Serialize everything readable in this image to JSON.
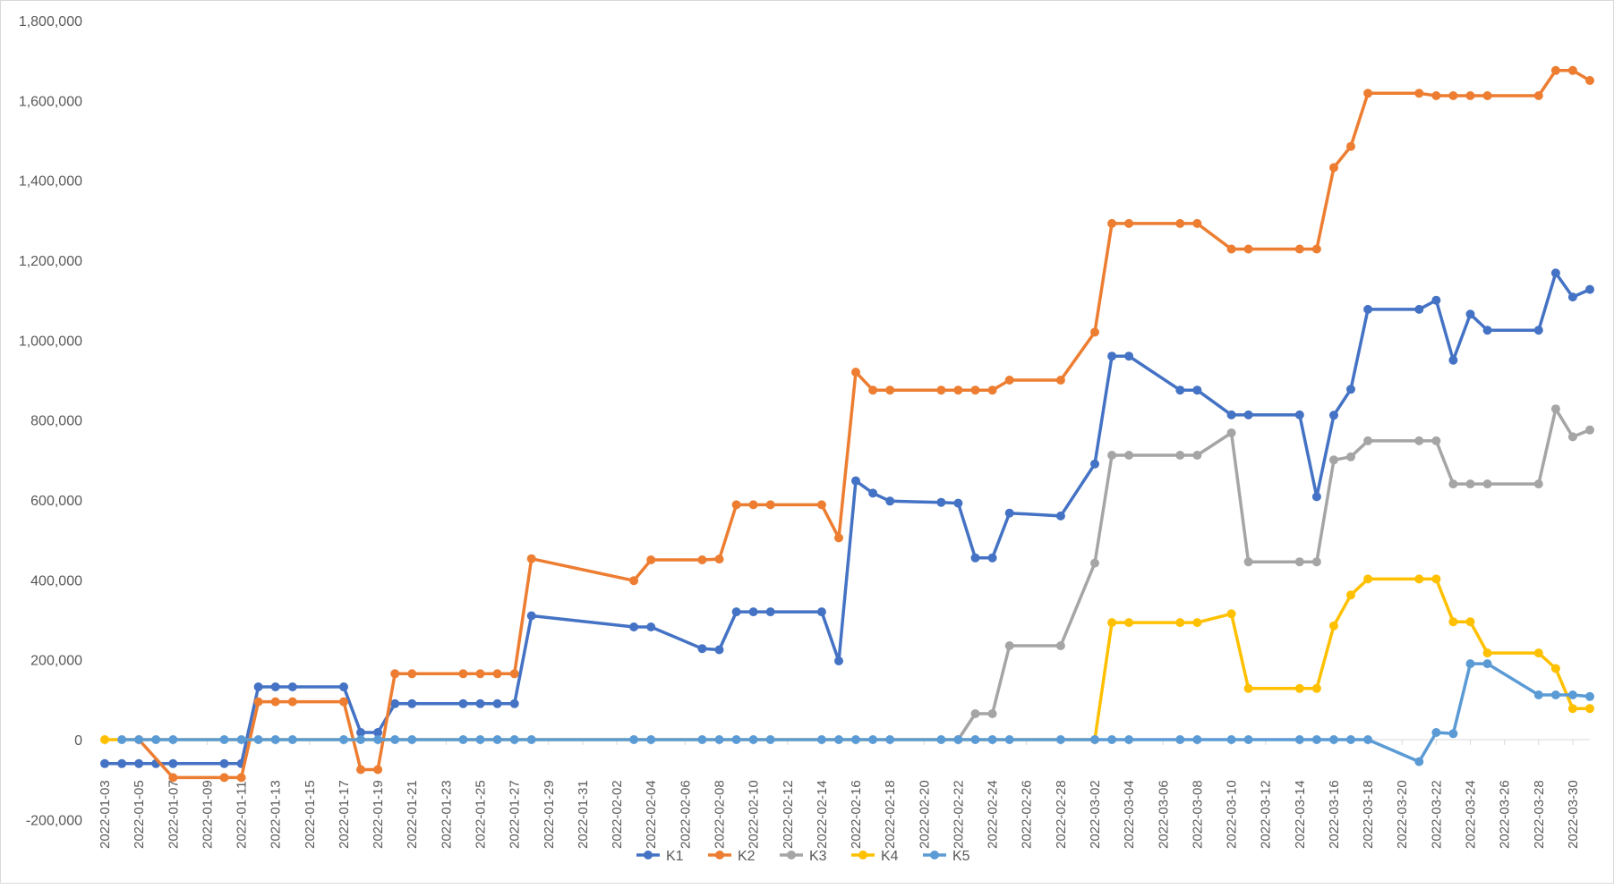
{
  "chart_data": {
    "type": "line",
    "title": "",
    "xlabel": "",
    "ylabel": "",
    "ylim": [
      -200000,
      1800000
    ],
    "y_ticks": [
      -200000,
      0,
      200000,
      400000,
      600000,
      800000,
      1000000,
      1200000,
      1400000,
      1600000,
      1800000
    ],
    "y_tick_labels": [
      "-200,000",
      "0",
      "200,000",
      "400,000",
      "600,000",
      "800,000",
      "1,000,000",
      "1,200,000",
      "1,400,000",
      "1,600,000",
      "1,800,000"
    ],
    "x_range": [
      "2022-01-03",
      "2022-03-31"
    ],
    "x_tick_labels": [
      "2022-01-03",
      "2022-01-05",
      "2022-01-07",
      "2022-01-09",
      "2022-01-11",
      "2022-01-13",
      "2022-01-15",
      "2022-01-17",
      "2022-01-19",
      "2022-01-21",
      "2022-01-23",
      "2022-01-25",
      "2022-01-27",
      "2022-01-29",
      "2022-01-31",
      "2022-02-02",
      "2022-02-04",
      "2022-02-06",
      "2022-02-08",
      "2022-02-10",
      "2022-02-12",
      "2022-02-14",
      "2022-02-16",
      "2022-02-18",
      "2022-02-20",
      "2022-02-22",
      "2022-02-24",
      "2022-02-26",
      "2022-02-28",
      "2022-03-02",
      "2022-03-04",
      "2022-03-06",
      "2022-03-08",
      "2022-03-10",
      "2022-03-12",
      "2022-03-14",
      "2022-03-16",
      "2022-03-18",
      "2022-03-20",
      "2022-03-22",
      "2022-03-24",
      "2022-03-26",
      "2022-03-28",
      "2022-03-30"
    ],
    "grid": false,
    "legend": "bottom",
    "series": [
      {
        "name": "K1",
        "color": "#4472C4",
        "points": [
          [
            "2022-01-03",
            -60000
          ],
          [
            "2022-01-04",
            -60000
          ],
          [
            "2022-01-05",
            -60000
          ],
          [
            "2022-01-06",
            -60000
          ],
          [
            "2022-01-07",
            -60000
          ],
          [
            "2022-01-10",
            -60000
          ],
          [
            "2022-01-11",
            -60000
          ],
          [
            "2022-01-12",
            132000
          ],
          [
            "2022-01-13",
            132000
          ],
          [
            "2022-01-14",
            132000
          ],
          [
            "2022-01-17",
            132000
          ],
          [
            "2022-01-18",
            18000
          ],
          [
            "2022-01-19",
            18000
          ],
          [
            "2022-01-20",
            90000
          ],
          [
            "2022-01-21",
            90000
          ],
          [
            "2022-01-24",
            90000
          ],
          [
            "2022-01-25",
            90000
          ],
          [
            "2022-01-26",
            90000
          ],
          [
            "2022-01-27",
            90000
          ],
          [
            "2022-01-28",
            310000
          ],
          [
            "2022-02-03",
            282000
          ],
          [
            "2022-02-04",
            282000
          ],
          [
            "2022-02-07",
            228000
          ],
          [
            "2022-02-08",
            225000
          ],
          [
            "2022-02-09",
            320000
          ],
          [
            "2022-02-10",
            320000
          ],
          [
            "2022-02-11",
            320000
          ],
          [
            "2022-02-14",
            320000
          ],
          [
            "2022-02-15",
            197000
          ],
          [
            "2022-02-16",
            648000
          ],
          [
            "2022-02-17",
            617000
          ],
          [
            "2022-02-18",
            597000
          ],
          [
            "2022-02-21",
            594000
          ],
          [
            "2022-02-22",
            592000
          ],
          [
            "2022-02-23",
            455000
          ],
          [
            "2022-02-24",
            455000
          ],
          [
            "2022-02-25",
            567000
          ],
          [
            "2022-02-28",
            560000
          ],
          [
            "2022-03-02",
            690000
          ],
          [
            "2022-03-03",
            960000
          ],
          [
            "2022-03-04",
            960000
          ],
          [
            "2022-03-07",
            875000
          ],
          [
            "2022-03-08",
            875000
          ],
          [
            "2022-03-10",
            813000
          ],
          [
            "2022-03-11",
            813000
          ],
          [
            "2022-03-14",
            813000
          ],
          [
            "2022-03-15",
            608000
          ],
          [
            "2022-03-16",
            812000
          ],
          [
            "2022-03-17",
            877000
          ],
          [
            "2022-03-18",
            1077000
          ],
          [
            "2022-03-21",
            1077000
          ],
          [
            "2022-03-22",
            1100000
          ],
          [
            "2022-03-23",
            950000
          ],
          [
            "2022-03-24",
            1065000
          ],
          [
            "2022-03-25",
            1025000
          ],
          [
            "2022-03-28",
            1025000
          ],
          [
            "2022-03-29",
            1168000
          ],
          [
            "2022-03-30",
            1108000
          ],
          [
            "2022-03-31",
            1127000
          ]
        ]
      },
      {
        "name": "K2",
        "color": "#ED7D31",
        "points": [
          [
            "2022-01-05",
            0
          ],
          [
            "2022-01-07",
            -95000
          ],
          [
            "2022-01-10",
            -95000
          ],
          [
            "2022-01-11",
            -95000
          ],
          [
            "2022-01-12",
            95000
          ],
          [
            "2022-01-13",
            95000
          ],
          [
            "2022-01-14",
            95000
          ],
          [
            "2022-01-17",
            95000
          ],
          [
            "2022-01-18",
            -75000
          ],
          [
            "2022-01-19",
            -75000
          ],
          [
            "2022-01-20",
            165000
          ],
          [
            "2022-01-21",
            165000
          ],
          [
            "2022-01-24",
            165000
          ],
          [
            "2022-01-25",
            165000
          ],
          [
            "2022-01-26",
            165000
          ],
          [
            "2022-01-27",
            165000
          ],
          [
            "2022-01-28",
            453000
          ],
          [
            "2022-02-03",
            398000
          ],
          [
            "2022-02-04",
            450000
          ],
          [
            "2022-02-07",
            450000
          ],
          [
            "2022-02-08",
            452000
          ],
          [
            "2022-02-09",
            588000
          ],
          [
            "2022-02-10",
            588000
          ],
          [
            "2022-02-11",
            588000
          ],
          [
            "2022-02-14",
            588000
          ],
          [
            "2022-02-15",
            505000
          ],
          [
            "2022-02-16",
            920000
          ],
          [
            "2022-02-17",
            875000
          ],
          [
            "2022-02-18",
            875000
          ],
          [
            "2022-02-21",
            875000
          ],
          [
            "2022-02-22",
            875000
          ],
          [
            "2022-02-23",
            875000
          ],
          [
            "2022-02-24",
            875000
          ],
          [
            "2022-02-25",
            900000
          ],
          [
            "2022-02-28",
            900000
          ],
          [
            "2022-03-02",
            1020000
          ],
          [
            "2022-03-03",
            1292000
          ],
          [
            "2022-03-04",
            1292000
          ],
          [
            "2022-03-07",
            1292000
          ],
          [
            "2022-03-08",
            1292000
          ],
          [
            "2022-03-10",
            1228000
          ],
          [
            "2022-03-11",
            1228000
          ],
          [
            "2022-03-14",
            1228000
          ],
          [
            "2022-03-15",
            1228000
          ],
          [
            "2022-03-16",
            1432000
          ],
          [
            "2022-03-17",
            1485000
          ],
          [
            "2022-03-18",
            1618000
          ],
          [
            "2022-03-21",
            1618000
          ],
          [
            "2022-03-22",
            1612000
          ],
          [
            "2022-03-23",
            1612000
          ],
          [
            "2022-03-24",
            1612000
          ],
          [
            "2022-03-25",
            1612000
          ],
          [
            "2022-03-28",
            1612000
          ],
          [
            "2022-03-29",
            1675000
          ],
          [
            "2022-03-30",
            1675000
          ],
          [
            "2022-03-31",
            1650000
          ]
        ]
      },
      {
        "name": "K3",
        "color": "#A5A5A5",
        "points": [
          [
            "2022-02-22",
            0
          ],
          [
            "2022-02-23",
            65000
          ],
          [
            "2022-02-24",
            65000
          ],
          [
            "2022-02-25",
            235000
          ],
          [
            "2022-02-28",
            235000
          ],
          [
            "2022-03-02",
            442000
          ],
          [
            "2022-03-03",
            712000
          ],
          [
            "2022-03-04",
            712000
          ],
          [
            "2022-03-07",
            712000
          ],
          [
            "2022-03-08",
            712000
          ],
          [
            "2022-03-10",
            768000
          ],
          [
            "2022-03-11",
            445000
          ],
          [
            "2022-03-14",
            445000
          ],
          [
            "2022-03-15",
            445000
          ],
          [
            "2022-03-16",
            700000
          ],
          [
            "2022-03-17",
            708000
          ],
          [
            "2022-03-18",
            748000
          ],
          [
            "2022-03-21",
            748000
          ],
          [
            "2022-03-22",
            748000
          ],
          [
            "2022-03-23",
            640000
          ],
          [
            "2022-03-24",
            640000
          ],
          [
            "2022-03-25",
            640000
          ],
          [
            "2022-03-28",
            640000
          ],
          [
            "2022-03-29",
            828000
          ],
          [
            "2022-03-30",
            758000
          ],
          [
            "2022-03-31",
            775000
          ]
        ]
      },
      {
        "name": "K4",
        "color": "#FFC000",
        "points": [
          [
            "2022-01-03",
            0
          ],
          [
            "2022-03-02",
            0
          ],
          [
            "2022-03-03",
            293000
          ],
          [
            "2022-03-04",
            293000
          ],
          [
            "2022-03-07",
            293000
          ],
          [
            "2022-03-08",
            293000
          ],
          [
            "2022-03-10",
            315000
          ],
          [
            "2022-03-11",
            128000
          ],
          [
            "2022-03-14",
            128000
          ],
          [
            "2022-03-15",
            128000
          ],
          [
            "2022-03-16",
            285000
          ],
          [
            "2022-03-17",
            362000
          ],
          [
            "2022-03-18",
            402000
          ],
          [
            "2022-03-21",
            402000
          ],
          [
            "2022-03-22",
            402000
          ],
          [
            "2022-03-23",
            295000
          ],
          [
            "2022-03-24",
            295000
          ],
          [
            "2022-03-25",
            217000
          ],
          [
            "2022-03-28",
            217000
          ],
          [
            "2022-03-29",
            178000
          ],
          [
            "2022-03-30",
            78000
          ],
          [
            "2022-03-31",
            78000
          ]
        ]
      },
      {
        "name": "K5",
        "color": "#5B9BD5",
        "points": [
          [
            "2022-01-04",
            0
          ],
          [
            "2022-01-05",
            0
          ],
          [
            "2022-01-06",
            0
          ],
          [
            "2022-01-07",
            0
          ],
          [
            "2022-01-10",
            0
          ],
          [
            "2022-01-11",
            0
          ],
          [
            "2022-01-12",
            0
          ],
          [
            "2022-01-13",
            0
          ],
          [
            "2022-01-14",
            0
          ],
          [
            "2022-01-17",
            0
          ],
          [
            "2022-01-18",
            0
          ],
          [
            "2022-01-19",
            0
          ],
          [
            "2022-01-20",
            0
          ],
          [
            "2022-01-21",
            0
          ],
          [
            "2022-01-24",
            0
          ],
          [
            "2022-01-25",
            0
          ],
          [
            "2022-01-26",
            0
          ],
          [
            "2022-01-27",
            0
          ],
          [
            "2022-01-28",
            0
          ],
          [
            "2022-02-03",
            0
          ],
          [
            "2022-02-04",
            0
          ],
          [
            "2022-02-07",
            0
          ],
          [
            "2022-02-08",
            0
          ],
          [
            "2022-02-09",
            0
          ],
          [
            "2022-02-10",
            0
          ],
          [
            "2022-02-11",
            0
          ],
          [
            "2022-02-14",
            0
          ],
          [
            "2022-02-15",
            0
          ],
          [
            "2022-02-16",
            0
          ],
          [
            "2022-02-17",
            0
          ],
          [
            "2022-02-18",
            0
          ],
          [
            "2022-02-21",
            0
          ],
          [
            "2022-02-22",
            0
          ],
          [
            "2022-02-23",
            0
          ],
          [
            "2022-02-24",
            0
          ],
          [
            "2022-02-25",
            0
          ],
          [
            "2022-02-28",
            0
          ],
          [
            "2022-03-02",
            0
          ],
          [
            "2022-03-03",
            0
          ],
          [
            "2022-03-04",
            0
          ],
          [
            "2022-03-07",
            0
          ],
          [
            "2022-03-08",
            0
          ],
          [
            "2022-03-10",
            0
          ],
          [
            "2022-03-11",
            0
          ],
          [
            "2022-03-14",
            0
          ],
          [
            "2022-03-15",
            0
          ],
          [
            "2022-03-16",
            0
          ],
          [
            "2022-03-17",
            0
          ],
          [
            "2022-03-18",
            0
          ],
          [
            "2022-03-21",
            -55000
          ],
          [
            "2022-03-22",
            18000
          ],
          [
            "2022-03-23",
            15000
          ],
          [
            "2022-03-24",
            190000
          ],
          [
            "2022-03-25",
            190000
          ],
          [
            "2022-03-28",
            112000
          ],
          [
            "2022-03-29",
            112000
          ],
          [
            "2022-03-30",
            112000
          ],
          [
            "2022-03-31",
            108000
          ]
        ]
      }
    ]
  }
}
